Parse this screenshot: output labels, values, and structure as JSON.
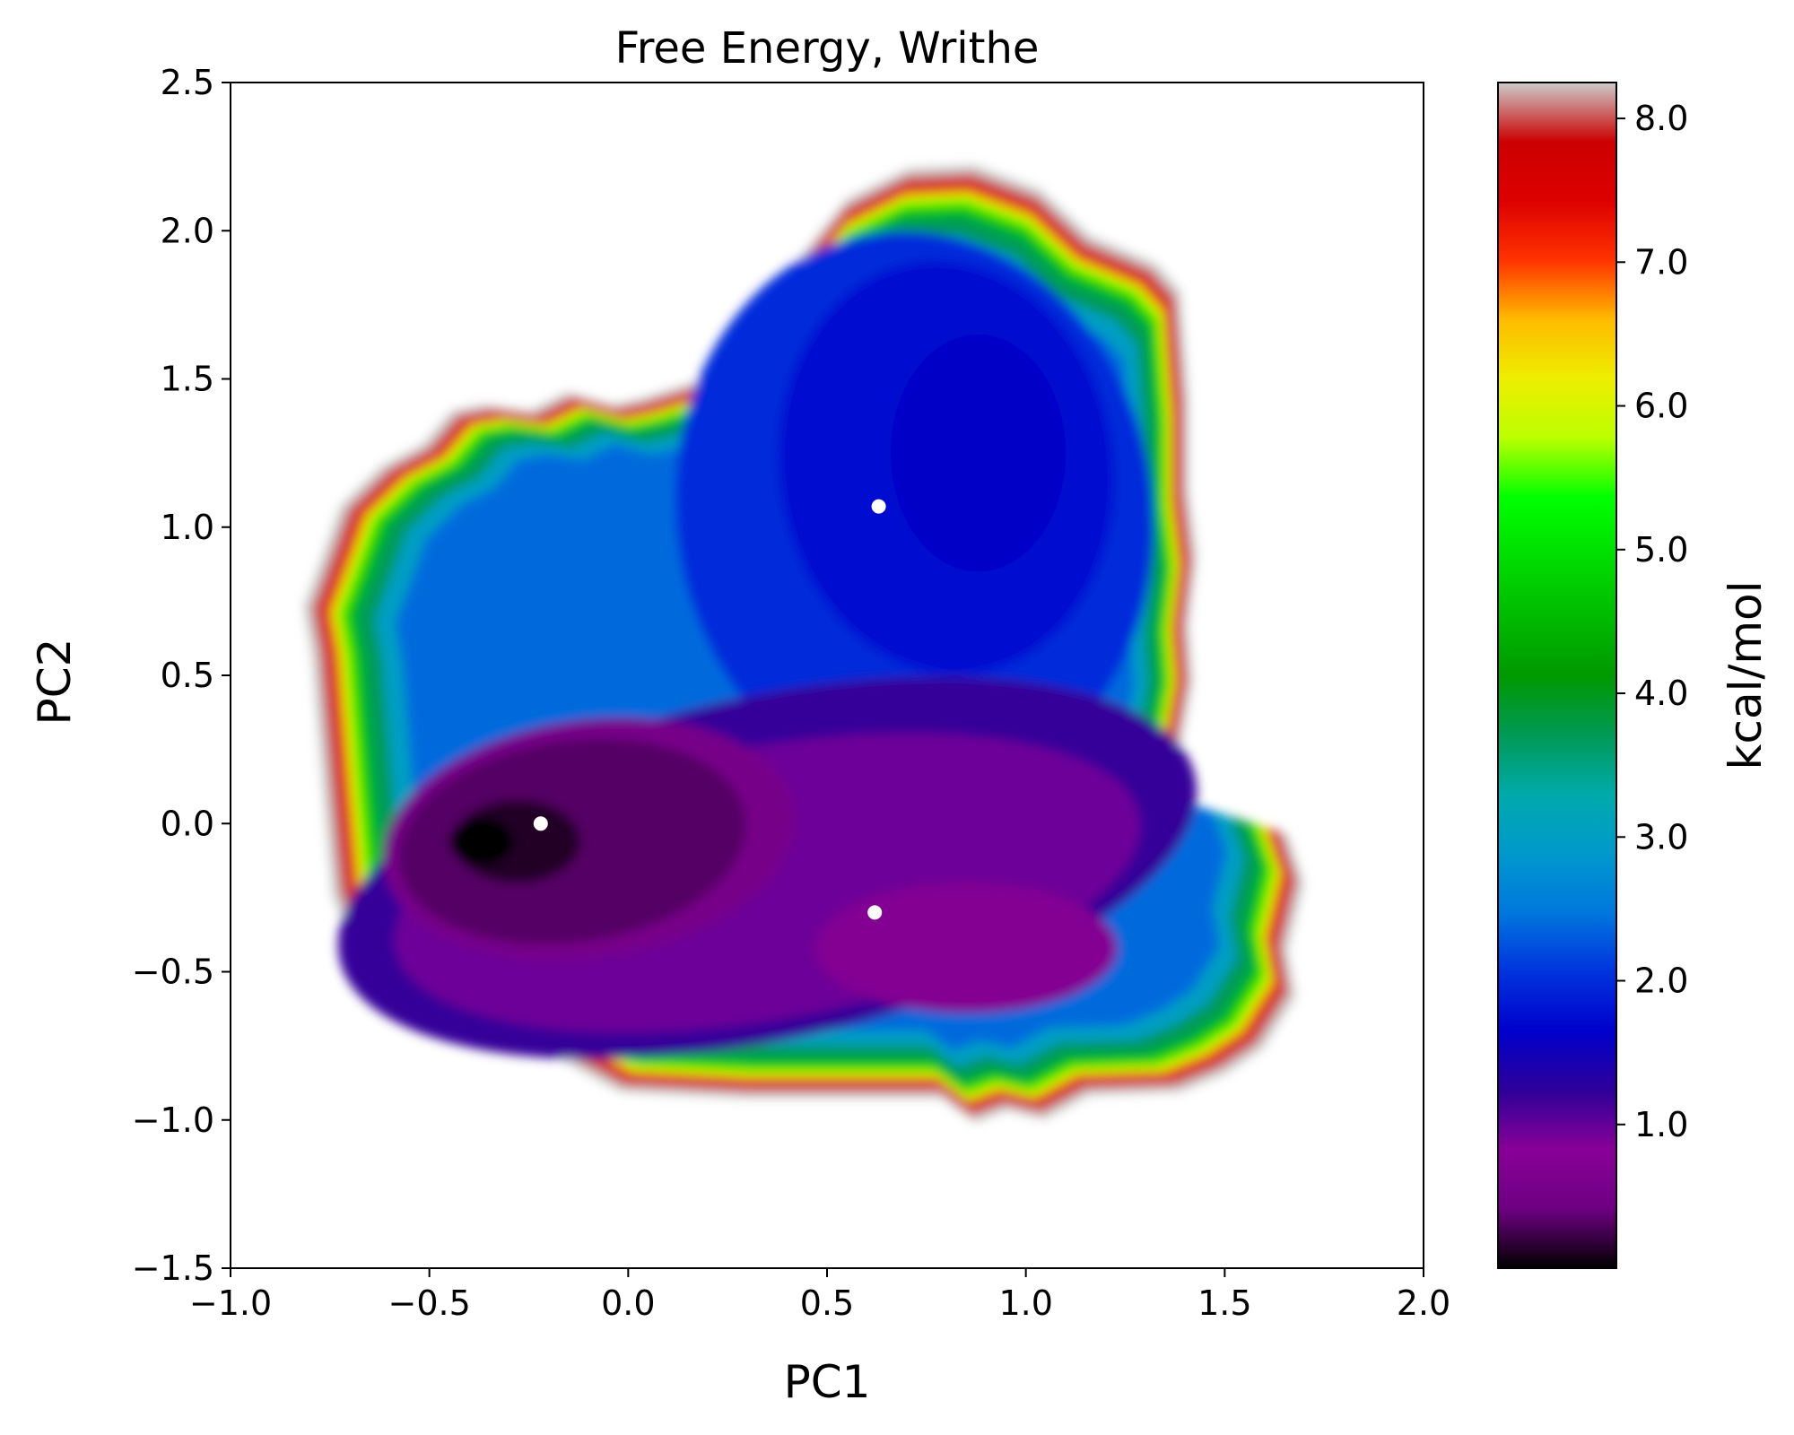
{
  "chart_data": {
    "type": "heatmap",
    "title": "Free Energy, Writhe",
    "xlabel": "PC1",
    "ylabel": "PC2",
    "xlim": [
      -1.0,
      2.0
    ],
    "ylim": [
      -1.5,
      2.5
    ],
    "xticks": [
      -1.0,
      -0.5,
      0.0,
      0.5,
      1.0,
      1.5,
      2.0
    ],
    "yticks": [
      -1.5,
      -1.0,
      -0.5,
      0.0,
      0.5,
      1.0,
      1.5,
      2.0,
      2.5
    ],
    "xtick_labels": [
      "−1.0",
      "−0.5",
      "0.0",
      "0.5",
      "1.0",
      "1.5",
      "2.0"
    ],
    "ytick_labels": [
      "−1.5",
      "−1.0",
      "−0.5",
      "0.0",
      "0.5",
      "1.0",
      "1.5",
      "2.0",
      "2.5"
    ],
    "colorbar": {
      "label": "kcal/mol",
      "range": [
        0.0,
        8.25
      ],
      "ticks": [
        1.0,
        2.0,
        3.0,
        4.0,
        5.0,
        6.0,
        7.0,
        8.0
      ],
      "tick_labels": [
        "1.0",
        "2.0",
        "3.0",
        "4.0",
        "5.0",
        "6.0",
        "7.0",
        "8.0"
      ],
      "colormap": "nipy_spectral",
      "stops": [
        [
          0.0,
          "#000000"
        ],
        [
          0.05,
          "#6e0082"
        ],
        [
          0.1,
          "#880097"
        ],
        [
          0.15,
          "#2e0099"
        ],
        [
          0.2,
          "#0000cc"
        ],
        [
          0.25,
          "#0033dd"
        ],
        [
          0.3,
          "#0077dd"
        ],
        [
          0.35,
          "#0099cc"
        ],
        [
          0.4,
          "#00aaaa"
        ],
        [
          0.45,
          "#009955"
        ],
        [
          0.5,
          "#009900"
        ],
        [
          0.55,
          "#00bb00"
        ],
        [
          0.6,
          "#00dd00"
        ],
        [
          0.65,
          "#00ff00"
        ],
        [
          0.7,
          "#bbff00"
        ],
        [
          0.75,
          "#eeee00"
        ],
        [
          0.8,
          "#ffbb00"
        ],
        [
          0.85,
          "#ff3300"
        ],
        [
          0.9,
          "#dd0000"
        ],
        [
          0.95,
          "#cc0000"
        ],
        [
          1.0,
          "#cccccc"
        ]
      ]
    },
    "basins": [
      {
        "x": -0.37,
        "y": -0.06,
        "value": 0.0
      },
      {
        "x": 0.85,
        "y": -0.42,
        "value": 0.75
      },
      {
        "x": 0.88,
        "y": 1.25,
        "value": 1.6
      }
    ],
    "markers": [
      {
        "x": -0.22,
        "y": 0.0
      },
      {
        "x": 0.62,
        "y": -0.3
      },
      {
        "x": 0.63,
        "y": 1.07
      }
    ],
    "marker_color": "#ffffff"
  }
}
